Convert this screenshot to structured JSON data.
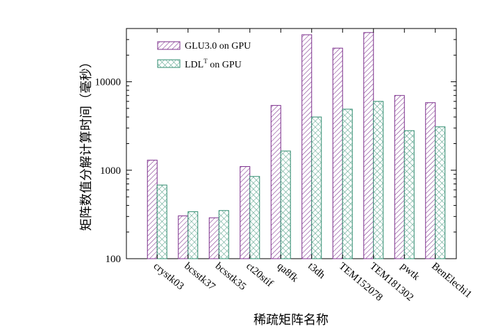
{
  "chart_data": {
    "type": "bar",
    "xlabel": "稀疏矩阵名称",
    "ylabel": "矩阵数值分解计算时间（毫秒）",
    "yscale": "log",
    "ylim": [
      100,
      40000
    ],
    "yticks": [
      100,
      1000,
      10000
    ],
    "ytick_labels": [
      "100",
      "1000",
      "10000"
    ],
    "categories": [
      "crystk03",
      "bcsstk37",
      "bcsstk35",
      "ct20stif",
      "qa8fk",
      "t3dh",
      "TEM152078",
      "TEM181302",
      "pwtk",
      "BenElechi1"
    ],
    "legend_position": "top-left",
    "series": [
      {
        "name": "GLU3.0 on GPU",
        "name_main": "GLU3.0 on GPU",
        "name_sup": "",
        "name_tail": "",
        "color": "#7b2d8b",
        "pattern": "diagonal-hatch",
        "values": [
          1300,
          305,
          290,
          1100,
          5400,
          34000,
          24000,
          36000,
          7000,
          5800
        ]
      },
      {
        "name": "LDLT on GPU",
        "name_main": "LDL",
        "name_sup": "T",
        "name_tail": " on GPU",
        "color": "#2e8b6e",
        "pattern": "cross-hatch",
        "values": [
          680,
          340,
          350,
          850,
          1650,
          4000,
          4900,
          6000,
          2800,
          3100
        ]
      }
    ]
  }
}
